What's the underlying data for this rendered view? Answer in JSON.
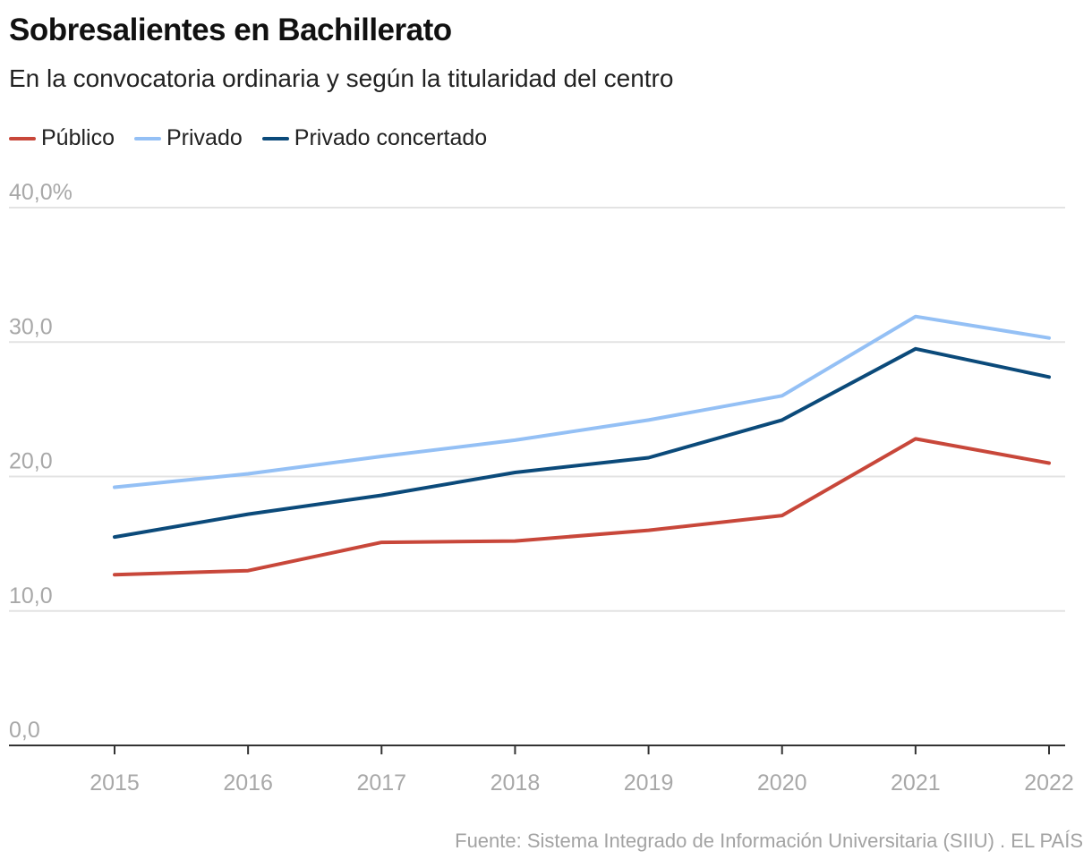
{
  "header": {
    "title": "Sobresalientes en Bachillerato",
    "subtitle": "En la convocatoria ordinaria y según la titularidad del centro"
  },
  "legend": [
    {
      "label": "Público",
      "color": "#c8473a"
    },
    {
      "label": "Privado",
      "color": "#94c0f5"
    },
    {
      "label": "Privado concertado",
      "color": "#0b4a7a"
    }
  ],
  "source": "Fuente: Sistema Integrado de Información Universitaria (SIIU) . EL PAÍS",
  "chart_data": {
    "type": "line",
    "title": "Sobresalientes en Bachillerato",
    "subtitle": "En la convocatoria ordinaria y según la titularidad del centro",
    "xlabel": "",
    "ylabel": "",
    "x": [
      "2015",
      "2016",
      "2017",
      "2018",
      "2019",
      "2020",
      "2021",
      "2022"
    ],
    "ylim": [
      0,
      40
    ],
    "yticks": [
      0,
      10,
      20,
      30,
      40
    ],
    "ytick_labels": [
      "0,0",
      "10,0",
      "20,0",
      "30,0",
      "40,0%"
    ],
    "grid": true,
    "legend_position": "top-left",
    "series": [
      {
        "name": "Público",
        "color": "#c8473a",
        "values": [
          12.7,
          13.0,
          15.1,
          15.2,
          16.0,
          17.1,
          22.8,
          21.0
        ]
      },
      {
        "name": "Privado",
        "color": "#94c0f5",
        "values": [
          19.2,
          20.2,
          21.5,
          22.7,
          24.2,
          26.0,
          31.9,
          30.3
        ]
      },
      {
        "name": "Privado concertado",
        "color": "#0b4a7a",
        "values": [
          15.5,
          17.2,
          18.6,
          20.3,
          21.4,
          24.2,
          29.5,
          27.4
        ]
      }
    ]
  }
}
